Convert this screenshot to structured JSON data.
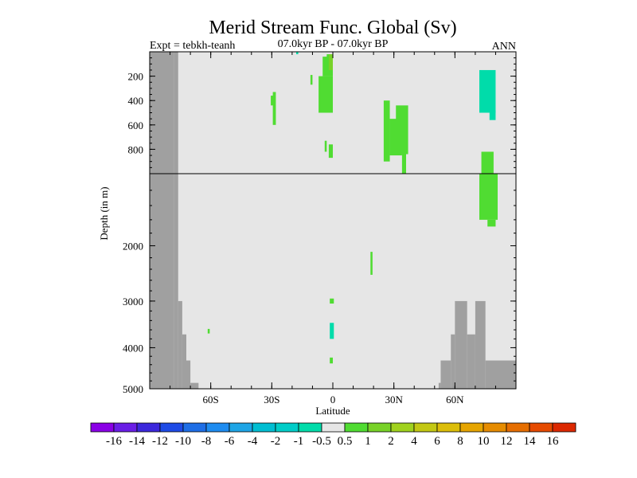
{
  "chart_data": {
    "type": "heatmap",
    "title": "Merid Stream Func. Global (Sv)",
    "subtitle_left": "Expt = tebkh-teanh",
    "subtitle_center": "07.0kyr BP - 07.0kyr BP",
    "subtitle_right": "ANN",
    "xlabel": "Latitude",
    "ylabel": "Depth (in m)",
    "x_ticks": [
      "60S",
      "30S",
      "0",
      "30N",
      "60N"
    ],
    "x_tick_values": [
      -60,
      -30,
      0,
      30,
      60
    ],
    "xlim": [
      -90,
      90
    ],
    "upper_y_ticks": [
      200,
      400,
      600,
      800
    ],
    "upper_ylim": [
      0,
      1000
    ],
    "lower_y_ticks": [
      2000,
      3000,
      4000,
      5000
    ],
    "lower_ylim": [
      1000,
      5000
    ],
    "split_depth": 1000,
    "colorbar": {
      "labels": [
        "-16",
        "-14",
        "-12",
        "-10",
        "-8",
        "-6",
        "-4",
        "-2",
        "-1",
        "-0.5",
        "0.5",
        "1",
        "2",
        "4",
        "6",
        "8",
        "10",
        "12",
        "14",
        "16"
      ],
      "colors": [
        "#8a00e6",
        "#6a1ee6",
        "#3c28dc",
        "#1e4be6",
        "#1e6ee6",
        "#1e8cf0",
        "#1ea5e6",
        "#00bed2",
        "#00cdc8",
        "#00dcaa",
        "#e6e6e6",
        "#50dc32",
        "#78d228",
        "#a0d21e",
        "#c3c814",
        "#dcbe0a",
        "#e6a500",
        "#e68c00",
        "#e66e00",
        "#e64b00",
        "#dc2800"
      ]
    },
    "background_color": "#e6e6e6",
    "land_color": "#a0a0a0",
    "land": [
      {
        "x0": -90,
        "x1": -78,
        "d0": 0,
        "d1": 5000
      },
      {
        "x0": -78,
        "x1": -76,
        "d0": 0,
        "d1": 5000
      },
      {
        "x0": -76,
        "x1": -74,
        "d0": 3000,
        "d1": 5000
      },
      {
        "x0": -74,
        "x1": -72,
        "d0": 3700,
        "d1": 5000
      },
      {
        "x0": -72,
        "x1": -70,
        "d0": 4300,
        "d1": 5000
      },
      {
        "x0": -70,
        "x1": -66,
        "d0": 4850,
        "d1": 5000
      },
      {
        "x0": 52,
        "x1": 53,
        "d0": 4850,
        "d1": 5000
      },
      {
        "x0": 53,
        "x1": 58,
        "d0": 4300,
        "d1": 5000
      },
      {
        "x0": 58,
        "x1": 60,
        "d0": 3700,
        "d1": 5000
      },
      {
        "x0": 60,
        "x1": 66,
        "d0": 3000,
        "d1": 5000
      },
      {
        "x0": 66,
        "x1": 70,
        "d0": 3700,
        "d1": 5000
      },
      {
        "x0": 70,
        "x1": 75,
        "d0": 3000,
        "d1": 5000
      },
      {
        "x0": 75,
        "x1": 90,
        "d0": 4300,
        "d1": 5000
      }
    ],
    "cells": [
      {
        "x0": -29.5,
        "x1": -28,
        "d0": 330,
        "d1": 600,
        "value": 0.75
      },
      {
        "x0": -30.5,
        "x1": -29,
        "d0": 360,
        "d1": 440,
        "value": 0.75
      },
      {
        "x0": -18,
        "x1": -17,
        "d0": 0,
        "d1": 20,
        "value": -0.75
      },
      {
        "x0": -11,
        "x1": -10,
        "d0": 190,
        "d1": 270,
        "value": 0.75
      },
      {
        "x0": -7,
        "x1": 0,
        "d0": 200,
        "d1": 500,
        "value": 0.75
      },
      {
        "x0": -5,
        "x1": 0,
        "d0": 40,
        "d1": 200,
        "value": 0.75
      },
      {
        "x0": -3,
        "x1": -1,
        "d0": 20,
        "d1": 100,
        "value": 0.75
      },
      {
        "x0": -2,
        "x1": 0,
        "d0": 20,
        "d1": 150,
        "value": 1.5
      },
      {
        "x0": -4,
        "x1": -3,
        "d0": 730,
        "d1": 820,
        "value": 0.75
      },
      {
        "x0": -2,
        "x1": 0,
        "d0": 760,
        "d1": 870,
        "value": 0.75
      },
      {
        "x0": 25,
        "x1": 28,
        "d0": 400,
        "d1": 900,
        "value": 0.75
      },
      {
        "x0": 28,
        "x1": 34,
        "d0": 550,
        "d1": 850,
        "value": 0.75
      },
      {
        "x0": 31,
        "x1": 37,
        "d0": 440,
        "d1": 840,
        "value": 0.75
      },
      {
        "x0": 34,
        "x1": 36,
        "d0": 800,
        "d1": 1000,
        "value": 0.75
      },
      {
        "x0": 72,
        "x1": 80,
        "d0": 150,
        "d1": 500,
        "value": -0.75
      },
      {
        "x0": 77,
        "x1": 80,
        "d0": 480,
        "d1": 560,
        "value": -0.75
      },
      {
        "x0": 73,
        "x1": 79,
        "d0": 820,
        "d1": 1000,
        "value": 0.75
      },
      {
        "x0": 72,
        "x1": 81,
        "d0": 1000,
        "d1": 1600,
        "value": 0.75
      },
      {
        "x0": 76,
        "x1": 80,
        "d0": 1600,
        "d1": 1700,
        "value": 0.75
      },
      {
        "x0": 18.5,
        "x1": 19.5,
        "d0": 2100,
        "d1": 2500,
        "value": 0.75
      },
      {
        "x0": -1.5,
        "x1": 0.5,
        "d0": 2950,
        "d1": 3050,
        "value": 0.75
      },
      {
        "x0": -1.5,
        "x1": 0.5,
        "d0": 3450,
        "d1": 3800,
        "value": -0.75
      },
      {
        "x0": -61.5,
        "x1": -60.5,
        "d0": 3580,
        "d1": 3680,
        "value": 0.75
      },
      {
        "x0": -1.5,
        "x1": 0,
        "d0": 4230,
        "d1": 4370,
        "value": 0.75
      }
    ]
  }
}
